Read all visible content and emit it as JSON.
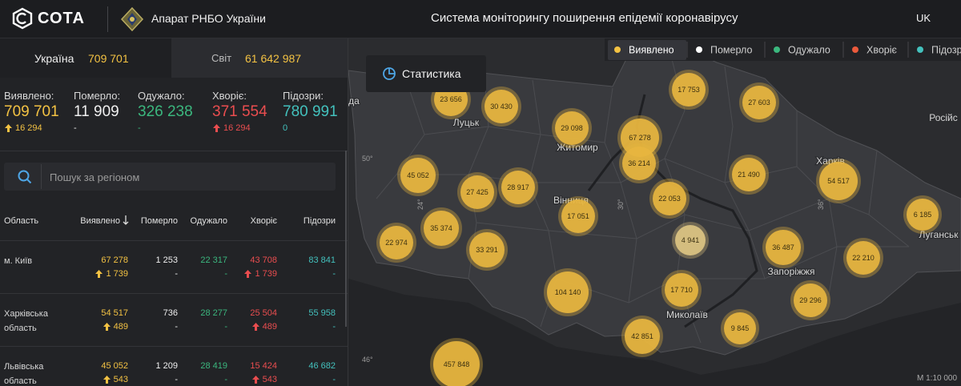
{
  "header": {
    "logo": "СОТА",
    "org": "Апарат РНБО України",
    "title": "Система моніторингу поширення епідемії коронавірусу",
    "lang": "UK"
  },
  "tabs": [
    {
      "label": "Україна",
      "value": "709 701"
    },
    {
      "label": "Світ",
      "value": "61 642 987"
    }
  ],
  "summary": [
    {
      "label": "Виявлено:",
      "value": "709 701",
      "change": "16 294"
    },
    {
      "label": "Померло:",
      "value": "11 909",
      "change": "-"
    },
    {
      "label": "Одужало:",
      "value": "326 238",
      "change": "-"
    },
    {
      "label": "Хворіє:",
      "value": "371 554",
      "change": "16 294"
    },
    {
      "label": "Підозри:",
      "value": "780 991",
      "change": "0"
    }
  ],
  "search": {
    "placeholder": "Пошук за регіоном"
  },
  "table": {
    "headers": [
      "Область",
      "Виявлено",
      "Померло",
      "Одужало",
      "Хворіє",
      "Підозри"
    ],
    "rows": [
      {
        "region": "м. Київ",
        "cells": [
          [
            "67 278",
            "1 739"
          ],
          [
            "1 253",
            "-"
          ],
          [
            "22 317",
            "-"
          ],
          [
            "43 708",
            "1 739"
          ],
          [
            "83 841",
            "-"
          ]
        ]
      },
      {
        "region": "Харківська область",
        "cells": [
          [
            "54 517",
            "489"
          ],
          [
            "736",
            "-"
          ],
          [
            "28 277",
            "-"
          ],
          [
            "25 504",
            "489"
          ],
          [
            "55 958",
            "-"
          ]
        ]
      },
      {
        "region": "Львівська область",
        "cells": [
          [
            "45 052",
            "543"
          ],
          [
            "1 209",
            "-"
          ],
          [
            "28 419",
            "-"
          ],
          [
            "15 424",
            "543"
          ],
          [
            "46 682",
            "-"
          ]
        ]
      }
    ]
  },
  "map": {
    "button": "Статистика",
    "legend": [
      "Виявлено",
      "Померло",
      "Одужало",
      "Хворіє",
      "Підозри"
    ],
    "places": [
      "да",
      "Луцьк",
      "Житомир",
      "Вінниця",
      "Харків",
      "Запоріжжя",
      "Миколаїв",
      "Луганськ",
      "Російс"
    ],
    "graticule": [
      "50°",
      "46°",
      "24°",
      "30°",
      "36°"
    ],
    "bubbles": [
      "23 656",
      "30 430",
      "17 753",
      "27 603",
      "29 098",
      "67 278",
      "36 214",
      "21 490",
      "54 517",
      "45 052",
      "27 425",
      "28 917",
      "22 053",
      "17 051",
      "6 185",
      "35 374",
      "22 974",
      "33 291",
      "4 941",
      "36 487",
      "22 210",
      "104 140",
      "17 710",
      "29 296",
      "9 845",
      "42 851",
      "457 848"
    ],
    "scale": "М 1:10 000"
  }
}
